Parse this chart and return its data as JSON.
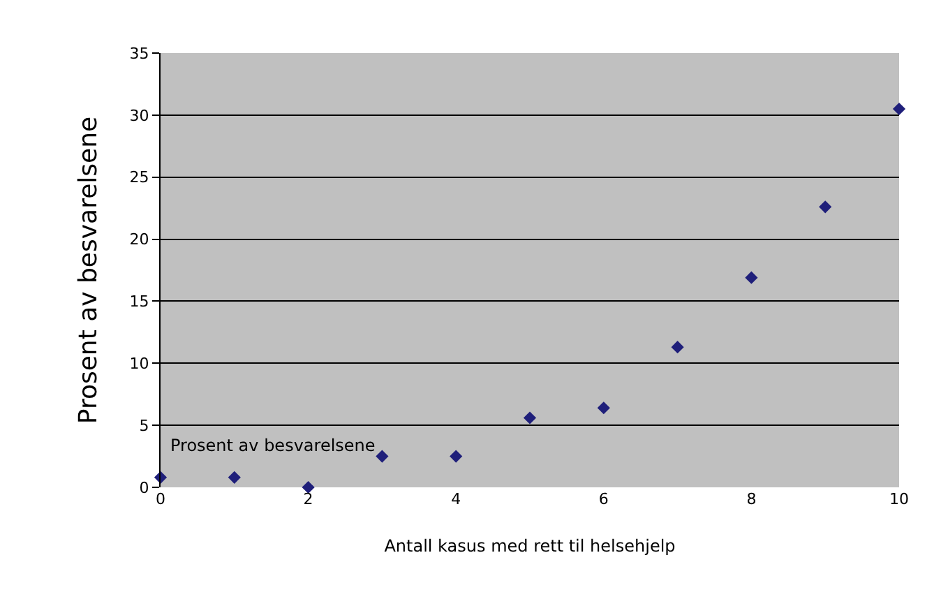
{
  "chart_data": {
    "type": "scatter",
    "xlabel": "Antall kasus med rett til helsehjelp",
    "ylabel": "Prosent av besvarelsene",
    "x": [
      0,
      1,
      2,
      3,
      4,
      5,
      6,
      7,
      8,
      9,
      10
    ],
    "values": [
      0.8,
      0.8,
      0,
      2.5,
      2.5,
      5.6,
      6.4,
      11.3,
      16.9,
      22.6,
      30.5
    ],
    "color": "#1f1f7a",
    "marker": "diamond",
    "grid": "y",
    "xlim": [
      0,
      10
    ],
    "xticks": [
      0,
      2,
      4,
      6,
      8,
      10
    ],
    "ylim": [
      0,
      35
    ],
    "yticks": [
      0,
      5,
      10,
      15,
      20,
      25,
      30,
      35
    ],
    "annotations": [
      "Prosent av besvarelsene"
    ]
  }
}
